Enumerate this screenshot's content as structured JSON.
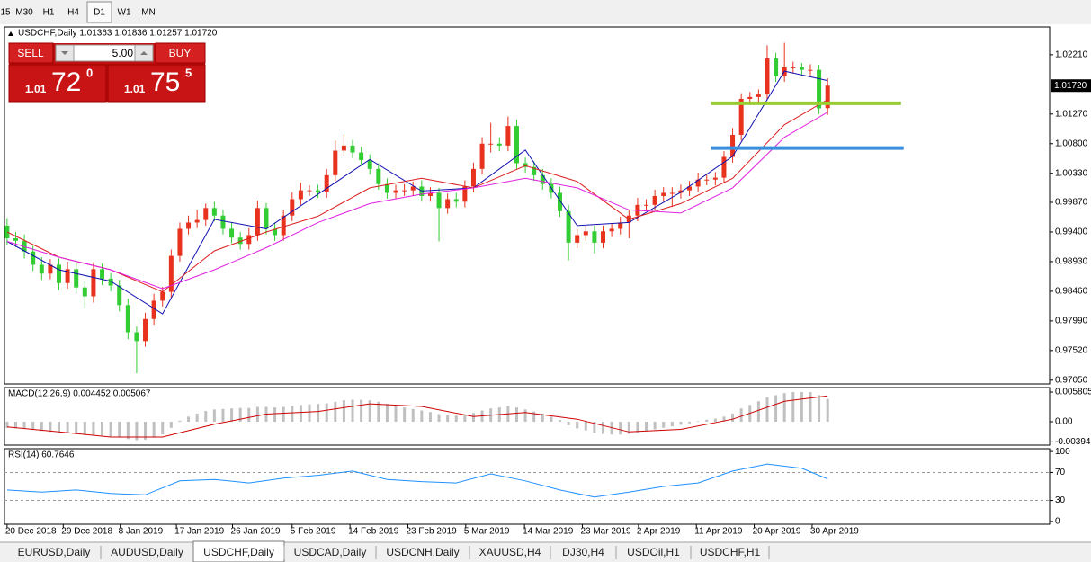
{
  "toolbar": {
    "timeframes": [
      "15",
      "M30",
      "H1",
      "H4",
      "D1",
      "W1",
      "MN"
    ],
    "active_index": 4
  },
  "trade_panel": {
    "sell": "SELL",
    "buy": "BUY",
    "volume": "5.00",
    "sell_price": {
      "big": "1.01",
      "pips": "72",
      "frac": "0"
    },
    "buy_price": {
      "big": "1.01",
      "pips": "75",
      "frac": "5"
    }
  },
  "tabs": {
    "items": [
      "EURUSD,Daily",
      "AUDUSD,Daily",
      "USDCHF,Daily",
      "USDCAD,Daily",
      "USDCNH,Daily",
      "XAUUSD,H4",
      "DJ30,H4",
      "USDOil,H1",
      "USDCHF,H1"
    ],
    "active_index": 2
  },
  "chart_data": [
    {
      "type": "candlestick",
      "title": "USDCHF,Daily 1.01363 1.01836 1.01257 1.01720",
      "up_color": "#e8321e",
      "down_color": "#32cd32",
      "open": [
        0.995,
        0.993,
        0.9926,
        0.9909,
        0.9888,
        0.9874,
        0.9888,
        0.9859,
        0.9881,
        0.9852,
        0.9838,
        0.9881,
        0.9866,
        0.9855,
        0.9824,
        0.9781,
        0.9767,
        0.9802,
        0.9831,
        0.9845,
        0.9902,
        0.9945,
        0.9955,
        0.9959,
        0.9978,
        0.9966,
        0.9945,
        0.9931,
        0.9921,
        0.9935,
        0.9978,
        0.9945,
        0.9935,
        0.9966,
        0.9992,
        1.0006,
        1.0006,
        1.0003,
        1.003,
        1.0069,
        1.0077,
        1.0066,
        1.0054,
        1.004,
        1.0016,
        1.0002,
        1.0006,
        1.0006,
        1.0012,
        0.9997,
        1.0002,
        0.9978,
        0.9992,
        0.9988,
        1.0012,
        1.004,
        1.008,
        1.008,
        1.0077,
        1.0108,
        1.0049,
        1.0043,
        1.003,
        1.0016,
        1.0002,
        0.9973,
        0.9923,
        0.9935,
        0.9941,
        0.9923,
        0.9941,
        0.9945,
        0.9955,
        0.9966,
        0.9983,
        0.9983,
        0.9997,
        1.0002,
        1.0002,
        1.0006,
        1.0012,
        1.0023,
        1.0023,
        1.0026,
        1.0059,
        1.0094,
        1.0151,
        1.0154,
        1.0158,
        1.0215,
        1.0187,
        1.0201,
        1.0201,
        1.0197,
        1.0197,
        1.01363
      ],
      "high": [
        0.9962,
        0.994,
        0.9936,
        0.9918,
        0.99,
        0.9897,
        0.9898,
        0.9893,
        0.989,
        0.9862,
        0.9892,
        0.989,
        0.9875,
        0.9864,
        0.9834,
        0.979,
        0.9812,
        0.9842,
        0.9853,
        0.9912,
        0.9955,
        0.9966,
        0.9975,
        0.9985,
        0.9988,
        0.9975,
        0.9955,
        0.994,
        0.9946,
        0.999,
        0.9986,
        0.9955,
        0.9975,
        1.0003,
        1.0018,
        1.0014,
        1.0015,
        1.004,
        1.0085,
        1.0095,
        1.0086,
        1.0075,
        1.0063,
        1.0049,
        1.0025,
        1.0015,
        1.0016,
        1.002,
        1.0022,
        1.0011,
        1.001,
        1.0001,
        1.0002,
        1.0022,
        1.005,
        1.009,
        1.0113,
        1.009,
        1.0123,
        1.0118,
        1.0058,
        1.0052,
        1.004,
        1.0025,
        1.0012,
        0.9983,
        0.9944,
        0.995,
        0.995,
        0.995,
        0.9954,
        0.9964,
        0.9975,
        0.9994,
        0.9992,
        1.0007,
        1.0011,
        1.0011,
        1.0015,
        1.0021,
        1.0034,
        1.0031,
        1.0035,
        1.0068,
        1.0105,
        1.016,
        1.0162,
        1.0166,
        1.0236,
        1.0224,
        1.024,
        1.021,
        1.0208,
        1.0206,
        1.0205,
        1.01836
      ],
      "low": [
        0.992,
        0.9916,
        0.9898,
        0.9878,
        0.9864,
        0.9865,
        0.9848,
        0.985,
        0.9842,
        0.9818,
        0.9828,
        0.9856,
        0.9846,
        0.9814,
        0.977,
        0.9716,
        0.9758,
        0.9793,
        0.9822,
        0.9836,
        0.9893,
        0.9936,
        0.9946,
        0.995,
        0.9957,
        0.9936,
        0.9922,
        0.9912,
        0.9912,
        0.9926,
        0.9936,
        0.9926,
        0.9926,
        0.9957,
        0.9983,
        0.9997,
        0.9994,
        0.9994,
        1.0021,
        1.006,
        1.0057,
        1.0045,
        1.0031,
        1.0007,
        0.9993,
        0.9993,
        0.9997,
        0.9997,
        0.9988,
        0.9988,
        0.9925,
        0.9969,
        0.9979,
        0.9979,
        1.0003,
        1.0031,
        1.0066,
        1.0068,
        1.0068,
        1.004,
        1.0034,
        1.0021,
        1.0007,
        0.9993,
        0.9964,
        0.9895,
        0.9914,
        0.9926,
        0.9906,
        0.9914,
        0.9932,
        0.9936,
        0.993,
        0.9957,
        0.9974,
        0.9974,
        0.9988,
        0.998,
        0.9993,
        0.9997,
        1.0003,
        1.0014,
        1.0014,
        1.0017,
        1.005,
        1.0085,
        1.0142,
        1.0145,
        1.0149,
        1.0178,
        1.0178,
        1.0192,
        1.0188,
        1.0188,
        1.0127,
        1.01257
      ],
      "close": [
        0.993,
        0.9926,
        0.9909,
        0.9888,
        0.9874,
        0.9888,
        0.9859,
        0.9881,
        0.9852,
        0.9838,
        0.9881,
        0.9866,
        0.9855,
        0.9824,
        0.9781,
        0.9767,
        0.9802,
        0.9831,
        0.9845,
        0.9902,
        0.9945,
        0.9955,
        0.9959,
        0.9978,
        0.9966,
        0.9945,
        0.9931,
        0.9921,
        0.9935,
        0.9978,
        0.9945,
        0.9935,
        0.9966,
        0.9992,
        1.0006,
        1.0006,
        1.0003,
        1.003,
        1.0069,
        1.0077,
        1.0066,
        1.0054,
        1.004,
        1.0016,
        1.0002,
        1.0006,
        1.0006,
        1.0012,
        0.9997,
        1.0002,
        0.9978,
        0.9992,
        0.9988,
        1.0012,
        1.004,
        1.008,
        1.008,
        1.0077,
        1.0108,
        1.0049,
        1.0043,
        1.003,
        1.0016,
        1.0002,
        0.9973,
        0.9923,
        0.9935,
        0.9941,
        0.9923,
        0.9941,
        0.9945,
        0.9955,
        0.9966,
        0.9983,
        0.9983,
        0.9997,
        1.0002,
        1.0002,
        1.0006,
        1.0012,
        1.0023,
        1.0023,
        1.0026,
        1.0059,
        1.0094,
        1.0151,
        1.0154,
        1.0158,
        1.0215,
        1.0187,
        1.0201,
        1.0201,
        1.0197,
        1.0197,
        1.0136,
        1.0172
      ],
      "series": [
        {
          "color": "#1010b0",
          "x": [
            0,
            6,
            12,
            18,
            24,
            30,
            36,
            42,
            48,
            54,
            60,
            66,
            72,
            78,
            84,
            90,
            95
          ],
          "values": [
            0.9925,
            0.988,
            0.9862,
            0.981,
            0.996,
            0.9945,
            1.0,
            1.0055,
            1.0005,
            1.001,
            1.007,
            0.995,
            0.9955,
            1.0003,
            1.006,
            1.0195,
            1.018
          ]
        },
        {
          "color": "#dc1e1e",
          "x": [
            0,
            6,
            12,
            18,
            24,
            30,
            36,
            42,
            48,
            54,
            60,
            66,
            72,
            78,
            84,
            90,
            95
          ],
          "values": [
            0.994,
            0.99,
            0.988,
            0.9845,
            0.991,
            0.994,
            0.9965,
            1.001,
            1.0025,
            1.001,
            1.0045,
            1.002,
            0.996,
            0.9985,
            1.0025,
            1.011,
            1.015
          ]
        },
        {
          "color": "#e020e0",
          "x": [
            0,
            6,
            12,
            18,
            24,
            30,
            36,
            42,
            48,
            54,
            60,
            66,
            72,
            78,
            84,
            90,
            95
          ],
          "values": [
            0.9925,
            0.99,
            0.988,
            0.985,
            0.988,
            0.9915,
            0.9955,
            0.9985,
            1.0,
            1.001,
            1.0025,
            1.001,
            0.9975,
            0.997,
            1.001,
            1.009,
            1.013
          ]
        }
      ],
      "hlines": [
        {
          "price": 1.0144,
          "from": 81.5,
          "to": 103.5,
          "color": "#9acd32"
        },
        {
          "price": 1.0073,
          "from": 81.5,
          "to": 103.8,
          "color": "#3a8fdc"
        }
      ],
      "price_tag": {
        "value": 1.0172,
        "label": "1.01720"
      },
      "xlim": [
        -0.3,
        120.7
      ],
      "ylim": [
        0.9699,
        1.0265
      ],
      "yticks": [
        {
          "value": 1.0221,
          "label": "1.02210"
        },
        {
          "value": 1.0127,
          "label": "1.01270"
        },
        {
          "value": 1.008,
          "label": "1.00800"
        },
        {
          "value": 1.0033,
          "label": "1.00330"
        },
        {
          "value": 0.9987,
          "label": "0.99870"
        },
        {
          "value": 0.994,
          "label": "0.99400"
        },
        {
          "value": 0.9893,
          "label": "0.98930"
        },
        {
          "value": 0.9846,
          "label": "0.98460"
        },
        {
          "value": 0.9799,
          "label": "0.97990"
        },
        {
          "value": 0.9752,
          "label": "0.97520"
        },
        {
          "value": 0.9705,
          "label": "0.97050"
        }
      ],
      "xticks": [
        {
          "value": 0,
          "label": "20 Dec 2018"
        },
        {
          "value": 6.5,
          "label": "29 Dec 2018"
        },
        {
          "value": 13.1,
          "label": "8 Jan 2019"
        },
        {
          "value": 19.6,
          "label": "17 Jan 2019"
        },
        {
          "value": 26.1,
          "label": "26 Jan 2019"
        },
        {
          "value": 33.0,
          "label": "5 Feb 2019"
        },
        {
          "value": 39.7,
          "label": "14 Feb 2019"
        },
        {
          "value": 46.4,
          "label": "23 Feb 2019"
        },
        {
          "value": 53.1,
          "label": "5 Mar 2019"
        },
        {
          "value": 59.9,
          "label": "14 Mar 2019"
        },
        {
          "value": 66.6,
          "label": "23 Mar 2019"
        },
        {
          "value": 73.1,
          "label": "2 Apr 2019"
        },
        {
          "value": 79.8,
          "label": "11 Apr 2019"
        },
        {
          "value": 86.5,
          "label": "20 Apr 2019"
        },
        {
          "value": 93.2,
          "label": "30 Apr 2019"
        }
      ]
    },
    {
      "type": "bar",
      "title": "MACD(12,26,9) 0.004452 0.005067",
      "color": "#c0c0c0",
      "values": [
        -0.0012,
        -0.0013,
        -0.0014,
        -0.0016,
        -0.0018,
        -0.002,
        -0.0021,
        -0.0022,
        -0.0024,
        -0.0026,
        -0.0026,
        -0.0027,
        -0.0029,
        -0.0031,
        -0.0034,
        -0.0036,
        -0.0035,
        -0.0031,
        -0.0025,
        -0.0012,
        0.0002,
        0.001,
        0.0016,
        0.0021,
        0.0024,
        0.0025,
        0.0026,
        0.0027,
        0.0027,
        0.0029,
        0.0029,
        0.0028,
        0.0029,
        0.0031,
        0.0033,
        0.0034,
        0.0035,
        0.0036,
        0.0039,
        0.0042,
        0.0043,
        0.0043,
        0.0042,
        0.0039,
        0.0035,
        0.0031,
        0.0028,
        0.0025,
        0.0022,
        0.0019,
        0.0015,
        0.0013,
        0.0012,
        0.0014,
        0.0017,
        0.0022,
        0.0026,
        0.0028,
        0.0031,
        0.0028,
        0.0024,
        0.002,
        0.0016,
        0.001,
        0.0003,
        -0.0007,
        -0.0013,
        -0.0017,
        -0.0022,
        -0.0024,
        -0.0025,
        -0.0025,
        -0.0024,
        -0.0021,
        -0.0018,
        -0.0015,
        -0.0012,
        -0.0009,
        -0.0006,
        -0.0003,
        0.0001,
        0.0004,
        0.0006,
        0.001,
        0.0016,
        0.0026,
        0.0033,
        0.004,
        0.0048,
        0.0052,
        0.0056,
        0.0058,
        0.0058,
        0.0058,
        0.0052,
        0.004452
      ],
      "series": [
        {
          "color": "#d00000",
          "x": [
            0,
            6,
            12,
            18,
            24,
            30,
            36,
            42,
            48,
            54,
            60,
            66,
            72,
            78,
            84,
            90,
            95
          ],
          "values": [
            -0.001,
            -0.002,
            -0.003,
            -0.003,
            -0.0005,
            0.0015,
            0.002,
            0.0035,
            0.003,
            0.001,
            0.0018,
            0.0005,
            -0.002,
            -0.0015,
            0.0005,
            0.004,
            0.005067
          ]
        }
      ],
      "xlim": [
        -0.3,
        120.7
      ],
      "ylim": [
        -0.00458,
        0.00669
      ],
      "yticks": [
        0.005805,
        {
          "value": 0,
          "label": "0.00"
        },
        -0.003945
      ]
    },
    {
      "type": "line",
      "title": "RSI(14) 60.7646",
      "series": [
        {
          "color": "#1e90ff",
          "x": [
            0,
            4,
            8,
            12,
            16,
            20,
            24,
            28,
            32,
            36,
            40,
            44,
            48,
            52,
            56,
            60,
            64,
            68,
            72,
            76,
            80,
            84,
            88,
            92,
            95
          ],
          "values": [
            45,
            42,
            45,
            40,
            38,
            58,
            60,
            55,
            62,
            66,
            72,
            60,
            57,
            55,
            68,
            58,
            45,
            35,
            42,
            50,
            55,
            72,
            82,
            76,
            60.7646
          ]
        }
      ],
      "levels": [
        70,
        30
      ],
      "xlim": [
        -0.3,
        120.7
      ],
      "ylim": [
        -4,
        104
      ],
      "yticks": [
        100,
        70,
        30,
        0
      ]
    }
  ]
}
